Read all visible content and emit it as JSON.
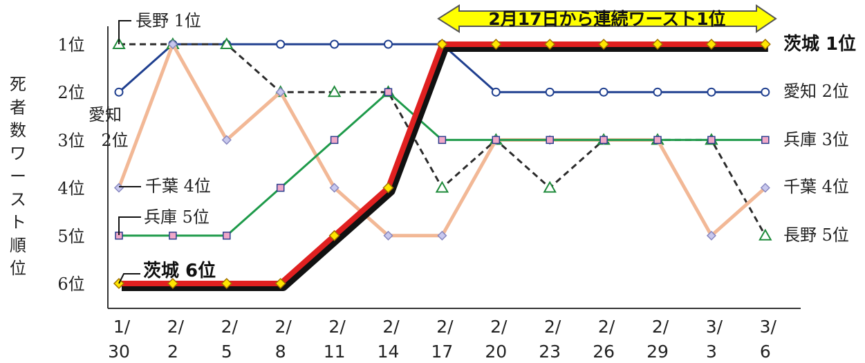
{
  "chart_data": {
    "type": "line",
    "ylabel": "死者数ワースト順位",
    "x": [
      "1/30",
      "2/2",
      "2/5",
      "2/8",
      "2/11",
      "2/14",
      "2/17",
      "2/20",
      "2/23",
      "2/26",
      "2/29",
      "3/3",
      "3/6"
    ],
    "x_ticks": [
      [
        "1/",
        "30"
      ],
      [
        "2/",
        "2"
      ],
      [
        "2/",
        "5"
      ],
      [
        "2/",
        "8"
      ],
      [
        "2/",
        "11"
      ],
      [
        "2/",
        "14"
      ],
      [
        "2/",
        "17"
      ],
      [
        "2/",
        "20"
      ],
      [
        "2/",
        "23"
      ],
      [
        "2/",
        "26"
      ],
      [
        "2/",
        "29"
      ],
      [
        "3/",
        "3"
      ],
      [
        "3/",
        "6"
      ]
    ],
    "y_ticks": [
      "1位",
      "2位",
      "3位",
      "4位",
      "5位",
      "6位"
    ],
    "ylim": [
      1,
      6
    ],
    "y_inverted": true,
    "series": [
      {
        "name": "愛知",
        "color": "#1f3f8f",
        "marker": "circle",
        "values": [
          2,
          1,
          1,
          1,
          1,
          1,
          1,
          2,
          2,
          2,
          2,
          2,
          2
        ],
        "start_label": [
          "愛知",
          "2位"
        ],
        "end_label": "愛知 2位"
      },
      {
        "name": "長野",
        "color": "#2b2b2b",
        "dash": true,
        "marker": "triangle",
        "values": [
          1,
          1,
          1,
          2,
          2,
          2,
          4,
          3,
          4,
          3,
          3,
          3,
          5
        ],
        "start_label": "長野 1位",
        "end_label": "長野 5位"
      },
      {
        "name": "千葉",
        "color": "#f2b896",
        "marker": "diamond",
        "values": [
          4,
          1,
          3,
          2,
          4,
          5,
          5,
          3,
          3,
          3,
          3,
          5,
          4
        ],
        "start_label": "千葉 4位",
        "end_label": "千葉 4位"
      },
      {
        "name": "兵庫",
        "color": "#1e9a4a",
        "marker": "square",
        "values": [
          5,
          5,
          5,
          4,
          3,
          2,
          3,
          3,
          3,
          3,
          3,
          3,
          3
        ],
        "start_label": "兵庫 5位",
        "end_label": "兵庫 3位"
      },
      {
        "name": "茨城",
        "color": "#e02020",
        "marker": "diamond-yellow",
        "values": [
          6,
          6,
          6,
          6,
          5,
          4,
          1,
          1,
          1,
          1,
          1,
          1,
          1
        ],
        "start_label": "茨城 6位",
        "end_label": "茨城 1位"
      }
    ],
    "annotation": "2月17日から連続ワースト1位"
  }
}
